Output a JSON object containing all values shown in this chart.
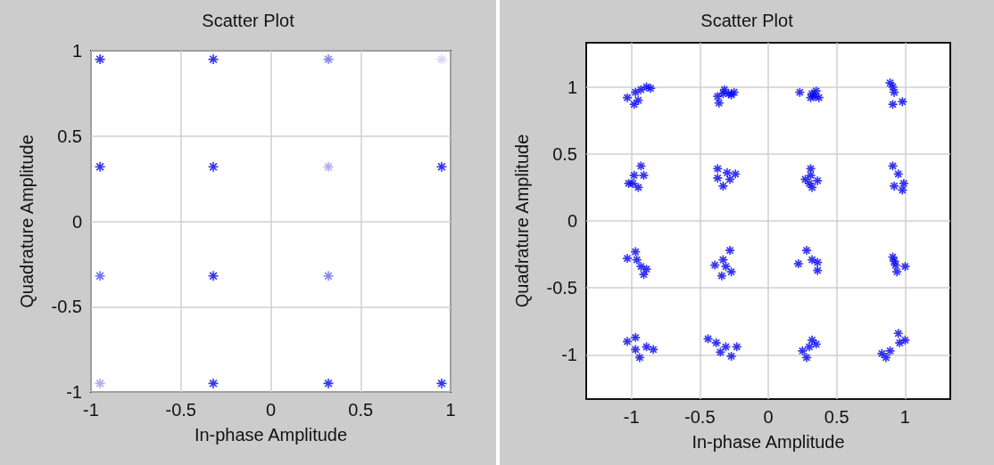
{
  "chart_data": [
    {
      "type": "scatter",
      "title": "Scatter Plot",
      "xlabel": "In-phase Amplitude",
      "ylabel": "Quadrature Amplitude",
      "xlim": [
        -1,
        1
      ],
      "ylim": [
        -1,
        1
      ],
      "xticks": [
        -1,
        -0.5,
        0,
        0.5,
        1
      ],
      "yticks": [
        -1,
        -0.5,
        0,
        0.5,
        1
      ],
      "grid": true,
      "marker": "cross",
      "series": [
        {
          "color": "#0000ff",
          "colors": [
            "#0000ff",
            "#0000ff",
            "#6666ff",
            "#ccccff",
            "#0000ff",
            "#0000ff",
            "#9999ff",
            "#0000ff",
            "#4d4dff",
            "#0000ff",
            "#6666ff",
            "#9999ff",
            "#0000ff",
            "#0000ff",
            "#0000ff"
          ],
          "x": [
            -0.95,
            -0.32,
            0.32,
            0.95,
            -0.95,
            -0.32,
            0.32,
            0.95,
            -0.95,
            -0.32,
            0.32,
            -0.95,
            -0.32,
            0.32,
            0.95
          ],
          "values": [
            0.95,
            0.95,
            0.95,
            0.95,
            0.32,
            0.32,
            0.32,
            0.32,
            -0.32,
            -0.32,
            -0.32,
            -0.95,
            -0.95,
            -0.95,
            -0.95
          ]
        }
      ]
    },
    {
      "type": "scatter",
      "title": "Scatter Plot",
      "xlabel": "In-phase Amplitude",
      "ylabel": "Quadrature Amplitude",
      "xlim": [
        -1.33,
        1.33
      ],
      "ylim": [
        -1.33,
        1.33
      ],
      "xticks": [
        -1,
        -0.5,
        0,
        0.5,
        1
      ],
      "yticks": [
        -1,
        -0.5,
        0,
        0.5,
        1
      ],
      "grid": true,
      "marker": "cross",
      "series": [
        {
          "color": "#0000ff",
          "x": [
            -1.03,
            -0.97,
            -0.93,
            -0.98,
            -0.89,
            -0.86,
            -0.95,
            -0.37,
            -0.33,
            -0.29,
            -0.25,
            -0.36,
            -0.32,
            -0.27,
            0.23,
            0.32,
            0.34,
            0.37,
            0.35,
            0.31,
            0.91,
            0.98,
            0.92,
            0.89,
            0.91,
            -0.98,
            -0.91,
            -0.99,
            -0.95,
            -0.93,
            -1.02,
            -0.37,
            -0.28,
            -0.24,
            -0.33,
            -0.37,
            -0.3,
            0.31,
            0.3,
            0.32,
            0.36,
            0.31,
            0.27,
            0.91,
            0.95,
            0.99,
            0.98,
            0.92,
            -1.03,
            -0.96,
            -0.97,
            -0.93,
            -0.89,
            -0.91,
            -0.39,
            -0.33,
            -0.28,
            -0.34,
            -0.27,
            -0.31,
            0.22,
            0.28,
            0.36,
            0.36,
            0.32,
            0.91,
            0.93,
            0.94,
            1.0,
            0.92,
            -1.03,
            -0.97,
            -0.97,
            -0.89,
            -0.84,
            -0.94,
            -0.44,
            -0.38,
            -0.31,
            -0.23,
            -0.27,
            -0.35,
            0.25,
            0.3,
            0.35,
            0.28,
            0.32,
            0.83,
            0.86,
            0.89,
            0.96,
            1.0,
            0.95
          ],
          "values": [
            0.92,
            0.96,
            0.98,
            0.87,
            1.0,
            0.99,
            0.9,
            0.93,
            0.95,
            0.95,
            0.96,
            0.88,
            0.98,
            0.94,
            0.96,
            0.95,
            0.93,
            0.92,
            0.97,
            0.92,
            1.0,
            0.89,
            0.96,
            1.03,
            0.87,
            0.34,
            0.34,
            0.28,
            0.25,
            0.41,
            0.28,
            0.32,
            0.31,
            0.35,
            0.26,
            0.39,
            0.36,
            0.34,
            0.28,
            0.25,
            0.3,
            0.39,
            0.31,
            0.41,
            0.35,
            0.28,
            0.23,
            0.26,
            -0.28,
            -0.29,
            -0.23,
            -0.34,
            -0.36,
            -0.4,
            -0.33,
            -0.29,
            -0.22,
            -0.41,
            -0.38,
            -0.34,
            -0.32,
            -0.22,
            -0.31,
            -0.37,
            -0.29,
            -0.27,
            -0.33,
            -0.38,
            -0.34,
            -0.3,
            -0.9,
            -0.87,
            -0.96,
            -0.94,
            -0.96,
            -1.02,
            -0.88,
            -0.91,
            -0.94,
            -0.94,
            -1.01,
            -0.98,
            -0.97,
            -0.94,
            -0.92,
            -1.02,
            -0.89,
            -0.99,
            -1.02,
            -0.97,
            -0.91,
            -0.89,
            -0.84
          ]
        }
      ]
    }
  ]
}
